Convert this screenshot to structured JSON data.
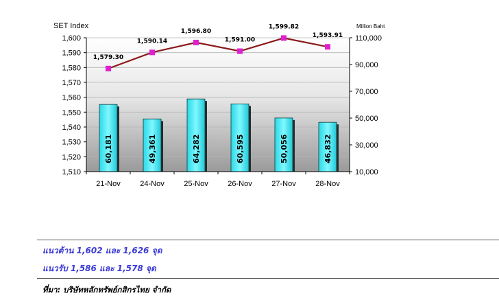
{
  "chart_data": {
    "type": "bar+line",
    "categories": [
      "21-Nov",
      "24-Nov",
      "25-Nov",
      "26-Nov",
      "27-Nov",
      "28-Nov"
    ],
    "line_series": {
      "axis": "left",
      "values": [
        1579.3,
        1590.14,
        1596.8,
        1591.0,
        1599.82,
        1593.91
      ],
      "labels": [
        "1,579.30",
        "1,590.14",
        "1,596.80",
        "1,591.00",
        "1,599.82",
        "1,593.91"
      ]
    },
    "bar_series": {
      "axis": "right",
      "values": [
        60181,
        49361,
        64282,
        60595,
        50056,
        46832
      ],
      "labels": [
        "60,181",
        "49,361",
        "64,282",
        "60,595",
        "50,056",
        "46,832"
      ]
    },
    "left_axis": {
      "title": "SET Index",
      "min": 1510,
      "max": 1600,
      "step": 10,
      "ticks": [
        "1,510",
        "1,520",
        "1,530",
        "1,540",
        "1,550",
        "1,560",
        "1,570",
        "1,580",
        "1,590",
        "1,600"
      ]
    },
    "right_axis": {
      "title": "Million Baht",
      "min": 10000,
      "max": 110000,
      "ticks": [
        "10,000",
        "30,000",
        "50,000",
        "70,000",
        "90,000",
        "110,000"
      ]
    },
    "grid": true,
    "colors": {
      "bar": "#4ff0ff",
      "line": "#8b1a1a",
      "marker": "#e020d0"
    }
  },
  "notes": {
    "resistance": "แนวต้าน 1,602  และ 1,626 จุด",
    "support": "แนวรับ 1,586 และ 1,578  จุด",
    "source": "ที่มา: บริษัทหลักทรัพย์กสิกรไทย จำกัด"
  }
}
